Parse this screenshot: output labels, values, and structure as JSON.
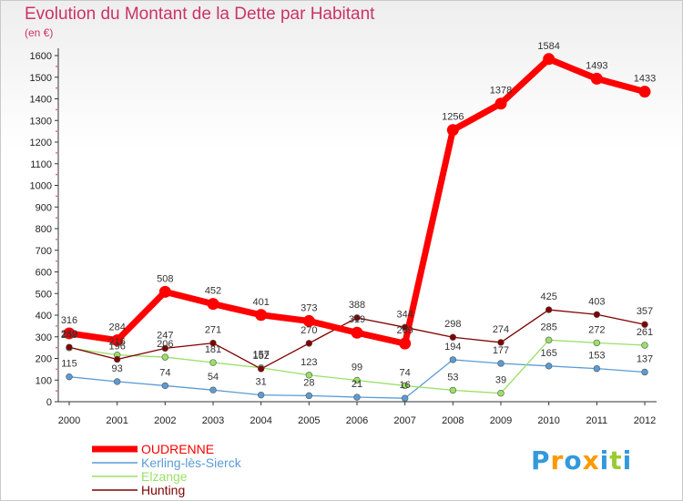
{
  "chart_data": {
    "type": "line",
    "title": "Evolution du Montant de la Dette par Habitant",
    "subtitle": "(en €)",
    "x": [
      "2000",
      "2001",
      "2002",
      "2003",
      "2004",
      "2005",
      "2006",
      "2007",
      "2008",
      "2009",
      "2010",
      "2011",
      "2012"
    ],
    "ylim": [
      0,
      1600
    ],
    "yticks": [
      0,
      100,
      200,
      300,
      400,
      500,
      600,
      700,
      800,
      900,
      1000,
      1100,
      1200,
      1300,
      1400,
      1500,
      1600
    ],
    "grid": false,
    "legend_position": "bottom-left",
    "series": [
      {
        "name": "OUDRENNE",
        "color": "#ff0000",
        "values": [
          316,
          284,
          508,
          452,
          401,
          373,
          319,
          269,
          1256,
          1378,
          1584,
          1493,
          1433
        ],
        "labels": [
          "316",
          "284",
          "508",
          "452",
          "401",
          "373",
          "319",
          "269",
          "1256",
          "1378",
          "1584",
          "1493",
          "1433"
        ]
      },
      {
        "name": "Kerling-lès-Sierck",
        "color": "#5b9bd5",
        "values": [
          115,
          93,
          74,
          54,
          31,
          28,
          21,
          16,
          194,
          177,
          165,
          153,
          137
        ],
        "labels": [
          "115",
          "93",
          "74",
          "54",
          "31",
          "28",
          "21",
          "16",
          "194",
          "177",
          "165",
          "153",
          "137"
        ]
      },
      {
        "name": "Elzange",
        "color": "#99e066",
        "values": [
          249,
          216,
          206,
          181,
          157,
          123,
          99,
          74,
          53,
          39,
          285,
          272,
          261
        ],
        "labels": [
          "249",
          "216",
          "206",
          "181",
          "157",
          "123",
          "99",
          "74",
          "53",
          "39",
          "285",
          "272",
          "261"
        ]
      },
      {
        "name": "Hunting",
        "color": "#800000",
        "values": [
          252,
          196,
          247,
          271,
          152,
          270,
          388,
          344,
          298,
          274,
          425,
          403,
          357
        ],
        "labels": [
          "252",
          "196",
          "247",
          "271",
          "152",
          "270",
          "388",
          "344",
          "298",
          "274",
          "425",
          "403",
          "357"
        ]
      }
    ]
  },
  "logo": {
    "text": "Proxiti",
    "letter_colors": [
      "#3399dd",
      "#ff9900",
      "#3399dd",
      "#ff9900",
      "#3399dd",
      "#99cc33",
      "#3399dd"
    ]
  }
}
